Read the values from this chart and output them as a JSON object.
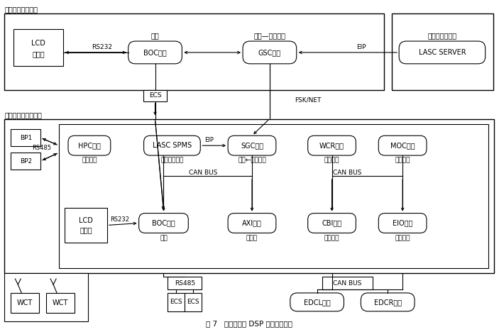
{
  "title": "图 7   智能采煤机 DSP 电控系统结构",
  "s1_label": "顺槽远程控制系统",
  "s2_label": "采煤机机载控制系统",
  "bg_color": "#ffffff"
}
